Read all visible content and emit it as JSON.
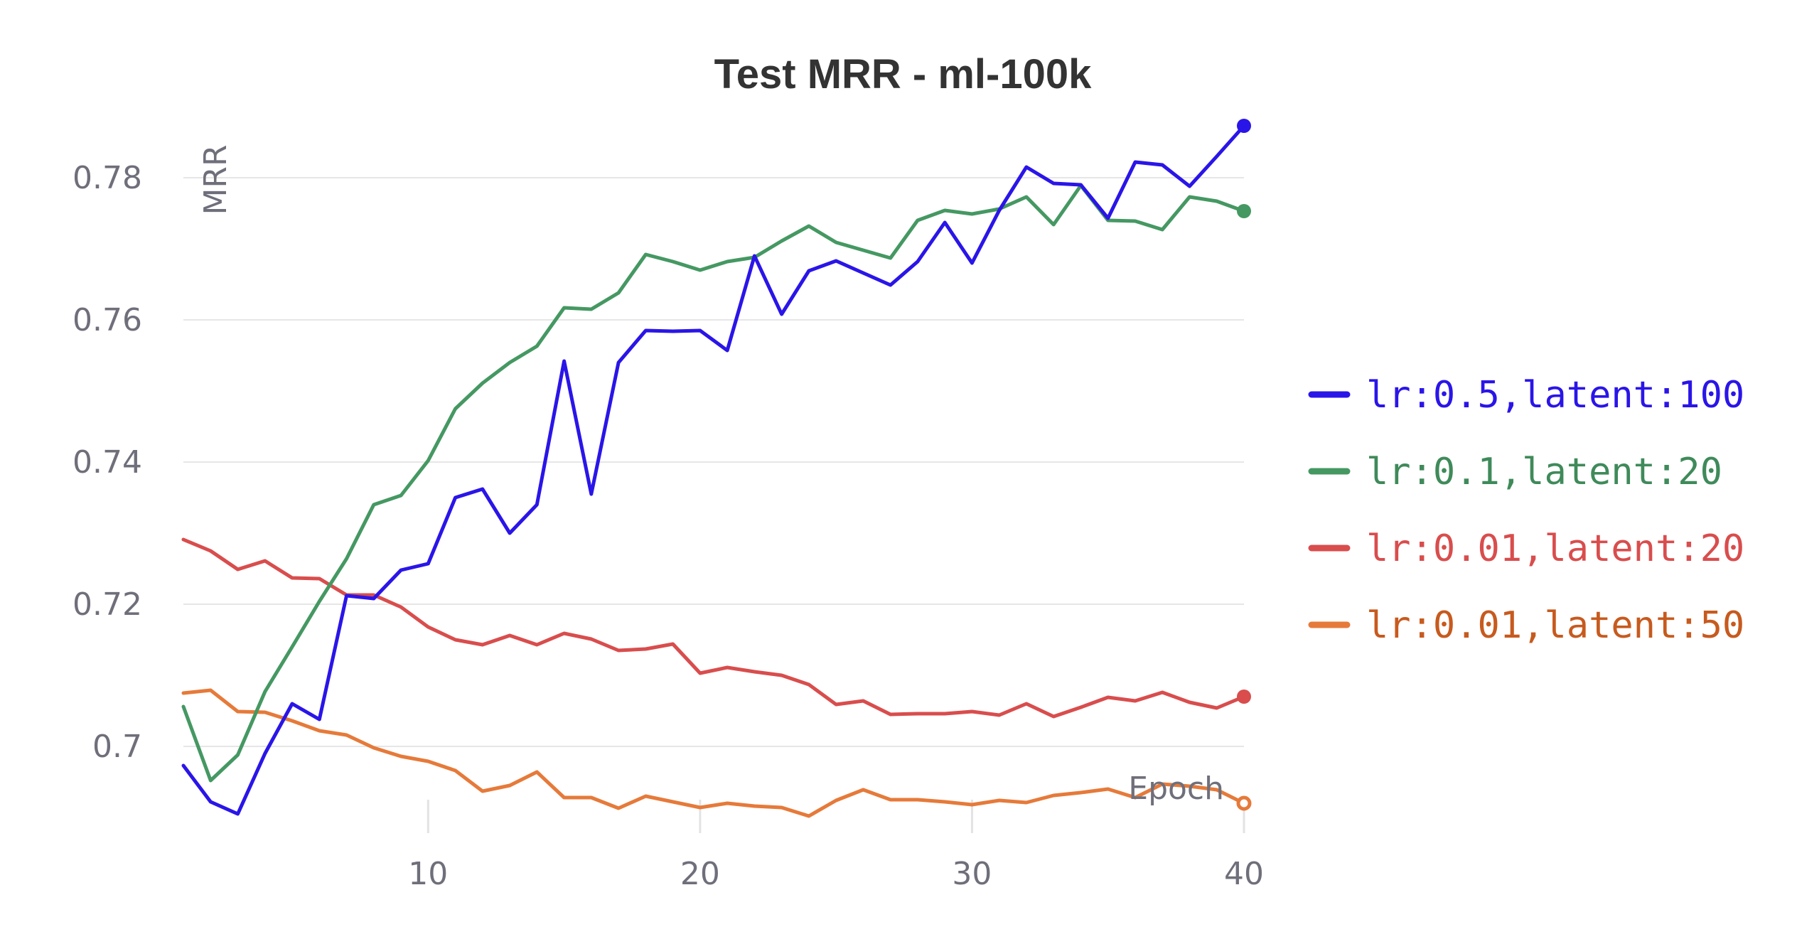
{
  "chart_data": {
    "type": "line",
    "title": "Test MRR - ml-100k",
    "xlabel": "Epoch",
    "ylabel": "MRR",
    "xlim": [
      1,
      40
    ],
    "ylim": [
      0.6905,
      0.7885
    ],
    "xticks": [
      10,
      20,
      30,
      40
    ],
    "yticks": [
      0.7,
      0.72,
      0.74,
      0.76,
      0.78
    ],
    "ytick_labels": [
      "0.7",
      "0.72",
      "0.74",
      "0.76",
      "0.78"
    ],
    "grid": "horizontal",
    "legend": "right",
    "x": [
      1,
      2,
      3,
      4,
      5,
      6,
      7,
      8,
      9,
      10,
      11,
      12,
      13,
      14,
      15,
      16,
      17,
      18,
      19,
      20,
      21,
      22,
      23,
      24,
      25,
      26,
      27,
      28,
      29,
      30,
      31,
      32,
      33,
      34,
      35,
      36,
      37,
      38,
      39,
      40
    ],
    "series": [
      {
        "name": "lr:0.5,latent:100",
        "color": "#2a15e8",
        "values": [
          0.6973,
          0.6922,
          0.6905,
          0.699,
          0.706,
          0.7038,
          0.7212,
          0.7208,
          0.7248,
          0.7257,
          0.735,
          0.7362,
          0.73,
          0.734,
          0.7542,
          0.7355,
          0.754,
          0.7585,
          0.7584,
          0.7585,
          0.7557,
          0.769,
          0.7608,
          0.7669,
          0.7683,
          0.7666,
          0.7649,
          0.7682,
          0.7737,
          0.768,
          0.7754,
          0.7815,
          0.7792,
          0.779,
          0.7743,
          0.7822,
          0.7818,
          0.7788,
          0.783,
          0.7873
        ]
      },
      {
        "name": "lr:0.1,latent:20",
        "color": "#459862",
        "values": [
          0.7056,
          0.6952,
          0.6988,
          0.7077,
          0.714,
          0.7204,
          0.7264,
          0.734,
          0.7353,
          0.7402,
          0.7475,
          0.7511,
          0.754,
          0.7563,
          0.7617,
          0.7615,
          0.7638,
          0.7692,
          0.7682,
          0.767,
          0.7682,
          0.7688,
          0.7711,
          0.7732,
          0.7709,
          0.7698,
          0.7687,
          0.774,
          0.7754,
          0.7749,
          0.7756,
          0.7773,
          0.7734,
          0.7789,
          0.774,
          0.7739,
          0.7727,
          0.7773,
          0.7767,
          0.7753
        ]
      },
      {
        "name": "lr:0.01,latent:20",
        "color": "#d94d4d",
        "values": [
          0.7291,
          0.7275,
          0.7249,
          0.7261,
          0.7237,
          0.7236,
          0.7213,
          0.7213,
          0.7196,
          0.7168,
          0.715,
          0.7143,
          0.7156,
          0.7143,
          0.7159,
          0.7151,
          0.7135,
          0.7137,
          0.7144,
          0.7103,
          0.7111,
          0.7105,
          0.71,
          0.7087,
          0.7059,
          0.7064,
          0.7045,
          0.7046,
          0.7046,
          0.7049,
          0.7044,
          0.706,
          0.7042,
          0.7055,
          0.7069,
          0.7064,
          0.7076,
          0.7062,
          0.7054,
          0.707
        ]
      },
      {
        "name": "lr:0.01,latent:50",
        "color": "#e67a3a",
        "values": [
          0.7075,
          0.7079,
          0.7049,
          0.7048,
          0.7036,
          0.7022,
          0.7016,
          0.6998,
          0.6986,
          0.6979,
          0.6966,
          0.6937,
          0.6945,
          0.6964,
          0.6928,
          0.6928,
          0.6913,
          0.693,
          0.6922,
          0.6914,
          0.692,
          0.6916,
          0.6914,
          0.6902,
          0.6924,
          0.6939,
          0.6925,
          0.6925,
          0.6922,
          0.6918,
          0.6924,
          0.6921,
          0.6931,
          0.6935,
          0.694,
          0.6928,
          0.6947,
          0.6944,
          0.6939,
          0.692
        ]
      }
    ]
  }
}
